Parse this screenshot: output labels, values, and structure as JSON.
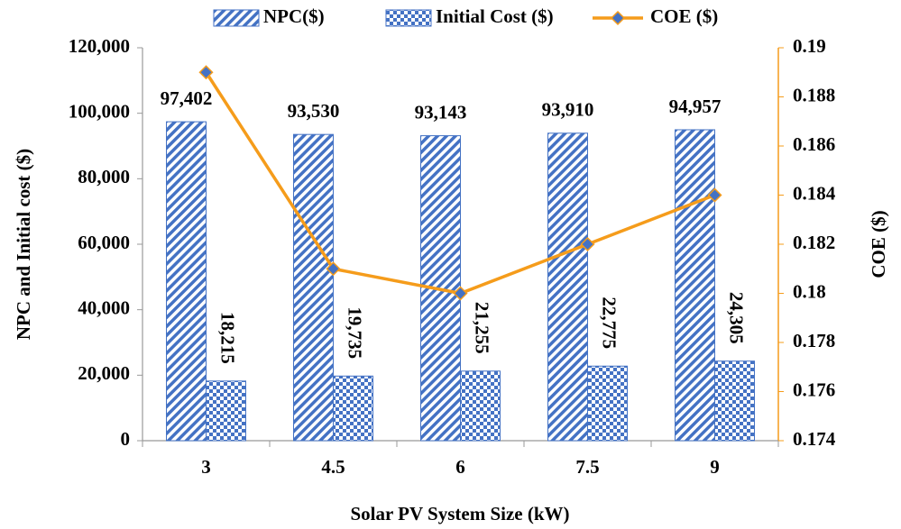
{
  "chart_data": {
    "type": "bar",
    "xlabel": "Solar PV System Size (kW)",
    "ylabel": "NPC and Initial cost ($)",
    "y2label": "COE ($)",
    "categories": [
      "3",
      "4.5",
      "6",
      "7.5",
      "9"
    ],
    "series": [
      {
        "name": "NPC($)",
        "type": "bar",
        "pattern": "stripes",
        "color": "#4472c4",
        "values": [
          97402,
          93530,
          93143,
          93910,
          94957
        ],
        "value_labels": [
          "97,402",
          "93,530",
          "93,143",
          "93,910",
          "94,957"
        ]
      },
      {
        "name": "Initial Cost ($)",
        "type": "bar",
        "pattern": "checks",
        "color": "#4472c4",
        "values": [
          18215,
          19735,
          21255,
          22775,
          24305
        ],
        "value_labels": [
          "18,215",
          "19,735",
          "21,255",
          "22,775",
          "24,305"
        ]
      },
      {
        "name": "COE ($)",
        "type": "line",
        "axis": "y2",
        "color": "#f59c1b",
        "values": [
          0.189,
          0.181,
          0.18,
          0.182,
          0.184
        ]
      }
    ],
    "ylim": [
      0,
      120000
    ],
    "yticks": [
      0,
      {
        "value": 20000,
        "label": "20,000"
      },
      {
        "value": 40000,
        "label": "40,000"
      },
      {
        "value": 60000,
        "label": "60,000"
      },
      {
        "value": 80000,
        "label": "80,000"
      },
      {
        "value": 100000,
        "label": "100,000"
      },
      {
        "value": 120000,
        "label": "120,000"
      }
    ],
    "y2lim": [
      0.174,
      0.19
    ],
    "y2ticks": [
      0.174,
      0.176,
      0.178,
      0.18,
      0.182,
      0.184,
      0.186,
      0.188,
      0.19
    ],
    "legend": "top",
    "grid": false
  }
}
